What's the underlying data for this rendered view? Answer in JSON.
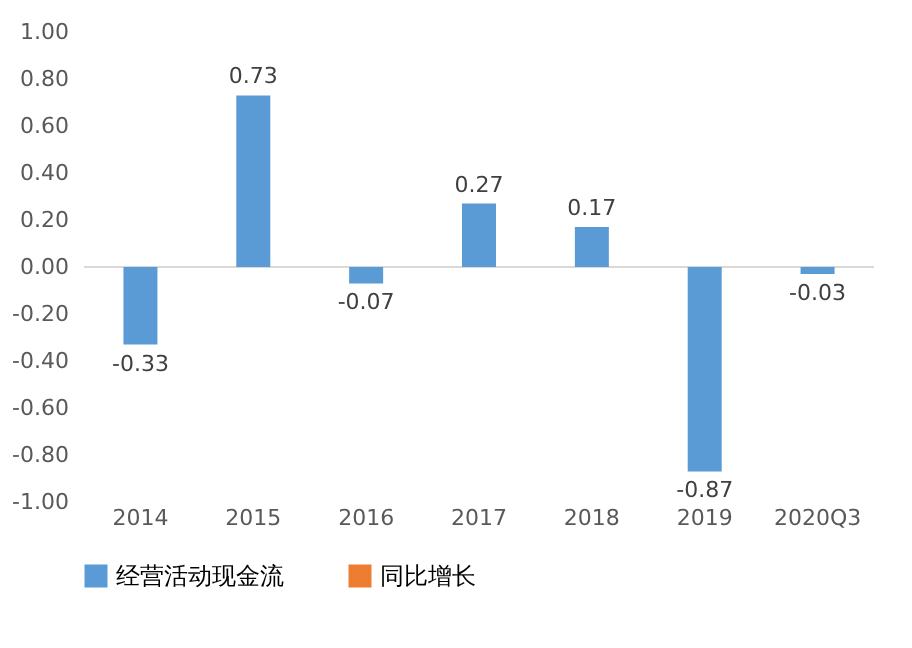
{
  "chart_data": {
    "type": "bar",
    "categories": [
      "2014",
      "2015",
      "2016",
      "2017",
      "2018",
      "2019",
      "2020Q3"
    ],
    "series": [
      {
        "name": "经营活动现金流",
        "color": "#5b9bd5",
        "values": [
          -0.33,
          0.73,
          -0.07,
          0.27,
          0.17,
          -0.87,
          -0.03
        ]
      },
      {
        "name": "同比增长",
        "color": "#ed7d31",
        "type": "line",
        "values": [
          null,
          null,
          null,
          null,
          null,
          null,
          null
        ]
      }
    ],
    "ylim": [
      -1.0,
      1.0
    ],
    "yticks": [
      {
        "value": -1.0,
        "label": "-1.00"
      },
      {
        "value": -0.8,
        "label": "-0.80"
      },
      {
        "value": -0.6,
        "label": "-0.60"
      },
      {
        "value": -0.4,
        "label": "-0.40"
      },
      {
        "value": -0.2,
        "label": "-0.20"
      },
      {
        "value": 0,
        "label": "0.00"
      },
      {
        "value": 0.2,
        "label": "0.20"
      },
      {
        "value": 0.4,
        "label": "0.40"
      },
      {
        "value": 0.6,
        "label": "0.60"
      },
      {
        "value": 0.8,
        "label": "0.80"
      },
      {
        "value": 1.0,
        "label": "1.00"
      }
    ],
    "data_labels": true,
    "legend": "bottom"
  }
}
